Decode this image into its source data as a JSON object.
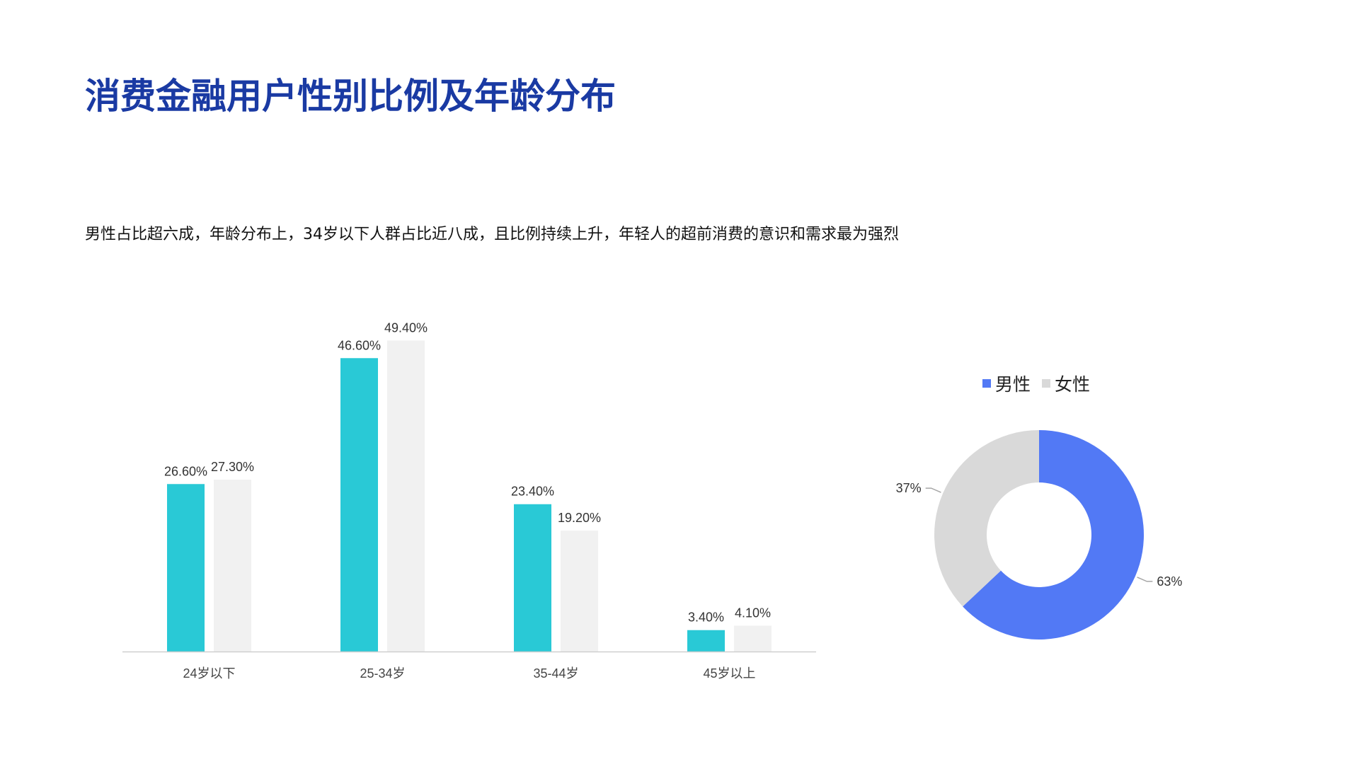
{
  "title": "消费金融用户性别比例及年龄分布",
  "subtitle": "男性占比超六成，年龄分布上，34岁以下人群占比近八成，且比例持续上升，年轻人的超前消费的意识和需求最为强烈",
  "colors": {
    "title": "#1a3aa3",
    "bar_series_1": "#29c9d6",
    "bar_series_2": "#f1f1f1",
    "male": "#5279f5",
    "female": "#d9d9d9"
  },
  "chart_data": [
    {
      "type": "bar",
      "categories": [
        "24岁以下",
        "25-34岁",
        "35-44岁",
        "45岁以上"
      ],
      "series": [
        {
          "values": [
            26.6,
            46.6,
            23.4,
            3.4
          ],
          "labels": [
            "26.60%",
            "46.60%",
            "23.40%",
            "3.40%"
          ]
        },
        {
          "values": [
            27.3,
            49.4,
            19.2,
            4.1
          ],
          "labels": [
            "27.30%",
            "49.40%",
            "19.20%",
            "4.10%"
          ]
        }
      ],
      "ylim": [
        0,
        55
      ],
      "grid": false,
      "legend": "none"
    },
    {
      "type": "pie",
      "donut": true,
      "legend": "top",
      "slices": [
        {
          "name": "男性",
          "value": 63,
          "label": "63%"
        },
        {
          "name": "女性",
          "value": 37,
          "label": "37%"
        }
      ]
    }
  ]
}
